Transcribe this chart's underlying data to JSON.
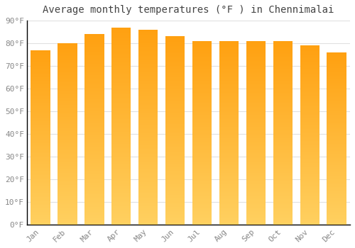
{
  "title": "Average monthly temperatures (°F ) in Chennimalai",
  "categories": [
    "Jan",
    "Feb",
    "Mar",
    "Apr",
    "May",
    "Jun",
    "Jul",
    "Aug",
    "Sep",
    "Oct",
    "Nov",
    "Dec"
  ],
  "values": [
    77,
    80,
    84,
    87,
    86,
    83,
    81,
    81,
    81,
    81,
    79,
    76
  ],
  "bar_color_bottom": "#FFD060",
  "bar_color_top": "#FFA010",
  "background_color": "#FFFFFF",
  "plot_bg_color": "#FFFFFF",
  "grid_color": "#E0E0E0",
  "axis_color": "#000000",
  "tick_color": "#888888",
  "title_color": "#444444",
  "ylim": [
    0,
    90
  ],
  "yticks": [
    0,
    10,
    20,
    30,
    40,
    50,
    60,
    70,
    80,
    90
  ],
  "ytick_labels": [
    "0°F",
    "10°F",
    "20°F",
    "30°F",
    "40°F",
    "50°F",
    "60°F",
    "70°F",
    "80°F",
    "90°F"
  ],
  "title_fontsize": 10,
  "tick_fontsize": 8,
  "bar_width": 0.72
}
